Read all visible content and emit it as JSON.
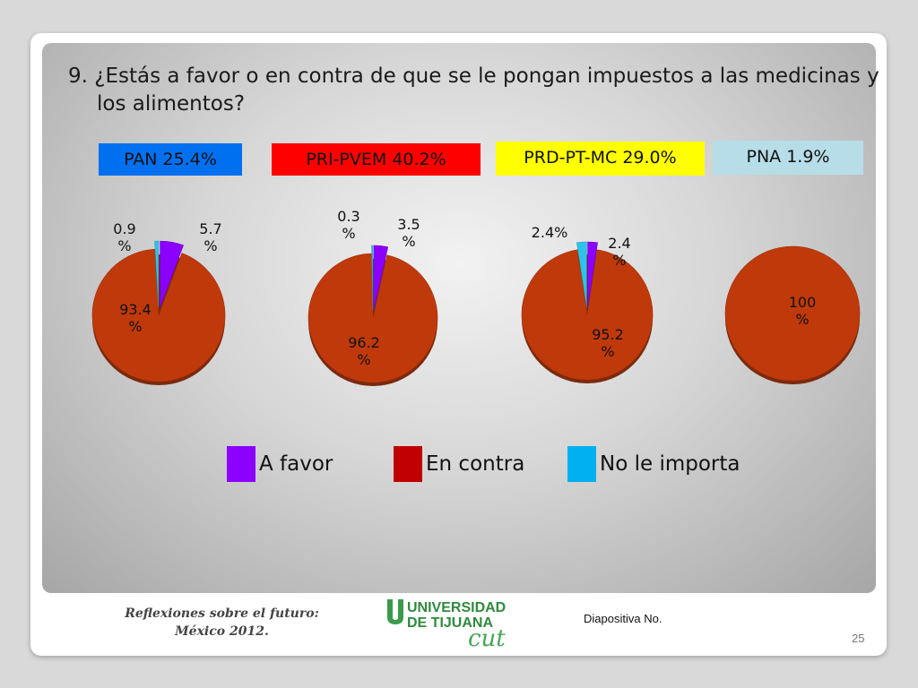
{
  "question": "9. ¿Estás a favor o en contra de que se le pongan impuestos a las medicinas y los alimentos?",
  "parties": [
    {
      "label": "PAN 25.4%",
      "bg": "#0070f0",
      "fg": "#111111"
    },
    {
      "label": "PRI-PVEM  40.2%",
      "bg": "#ff0000",
      "fg": "#111111"
    },
    {
      "label": "PRD-PT-MC 29.0%",
      "bg": "#ffff00",
      "fg": "#111111"
    },
    {
      "label": "PNA 1.9%",
      "bg": "#b7dde8",
      "fg": "#111111"
    }
  ],
  "legend": [
    {
      "label": "A favor",
      "color": "#8b00ff"
    },
    {
      "label": "En contra",
      "color": "#c00000"
    },
    {
      "label": "No le importa",
      "color": "#00b0f0"
    }
  ],
  "chart_data": [
    {
      "type": "pie",
      "title": "PAN 25.4%",
      "categories": [
        "A favor",
        "En contra",
        "No le importa"
      ],
      "values": [
        5.7,
        93.4,
        0.9
      ],
      "data_labels": [
        [
          "5.7",
          "%"
        ],
        [
          "93.4",
          "%"
        ],
        [
          "0.9",
          "%"
        ]
      ]
    },
    {
      "type": "pie",
      "title": "PRI-PVEM  40.2%",
      "categories": [
        "A favor",
        "En contra",
        "No le importa"
      ],
      "values": [
        3.5,
        96.2,
        0.3
      ],
      "data_labels": [
        [
          "3.5",
          "%"
        ],
        [
          "96.2",
          "%"
        ],
        [
          "0.3",
          "%"
        ]
      ]
    },
    {
      "type": "pie",
      "title": "PRD-PT-MC 29.0%",
      "categories": [
        "A favor",
        "En contra",
        "No le importa"
      ],
      "values": [
        2.4,
        95.2,
        2.4
      ],
      "data_labels": [
        [
          "2.4",
          "%"
        ],
        [
          "95.2",
          "%"
        ],
        [
          "2.4%"
        ]
      ]
    },
    {
      "type": "pie",
      "title": "PNA 1.9%",
      "categories": [
        "A favor",
        "En contra",
        "No le importa"
      ],
      "values": [
        0,
        100,
        0
      ],
      "data_labels": [
        [],
        [
          "100",
          "%"
        ],
        []
      ]
    }
  ],
  "colors": {
    "a_favor": "#8b00ff",
    "en_contra": "#c0390b",
    "no_le_importa": "#2ec4e8"
  },
  "footer": {
    "title_line1": "Reflexiones sobre el futuro:",
    "title_line2": "México 2012.",
    "logo_line1": "UNIVERSIDAD",
    "logo_line2": "DE TIJUANA",
    "logo_mark": "cut",
    "slide_label": "Diapositiva No.",
    "page_number": "25"
  }
}
